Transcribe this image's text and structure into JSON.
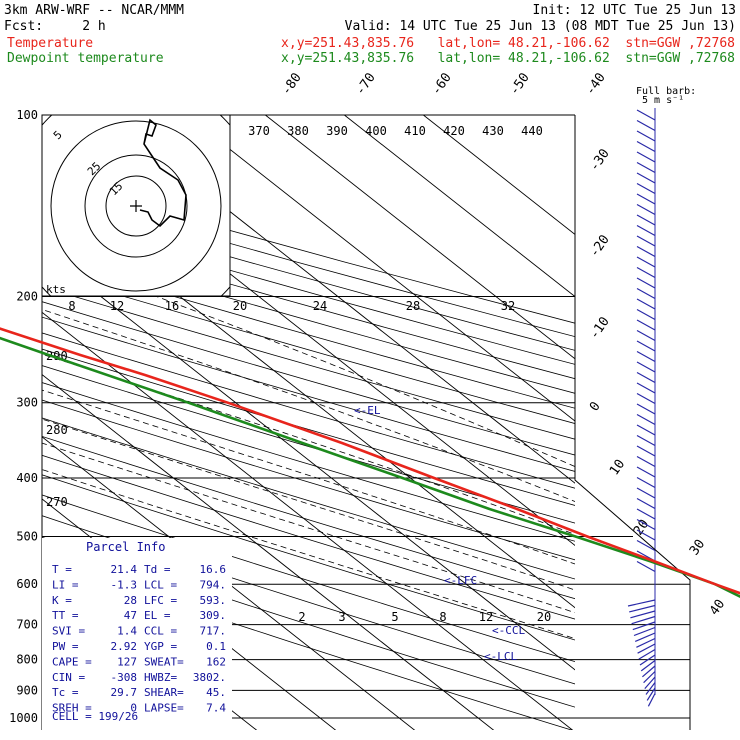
{
  "header": {
    "line1_left": "3km ARW-WRF -- NCAR/MMM",
    "line1_right": "Init: 12 UTC Tue 25 Jun 13",
    "line2_left": "Fcst:     2 h",
    "line2_right": "Valid: 14 UTC Tue 25 Jun 13 (08 MDT Tue 25 Jun 13)",
    "temp_label": "Temperature",
    "temp_info": "x,y=251.43,835.76   lat,lon= 48.21,-106.62  stn=GGW ,72768",
    "dew_label": "Dewpoint temperature",
    "dew_info": "x,y=251.43,835.76   lat,lon= 48.21,-106.62  stn=GGW ,72768"
  },
  "colors": {
    "temperature": "#e8251c",
    "dewpoint": "#1d8a1d",
    "wind": "#2a2aa8",
    "parcel_info": "#10109a"
  },
  "chart_data": {
    "type": "skew-t",
    "pressure_axis": {
      "ticks": [
        100,
        200,
        300,
        400,
        500,
        600,
        700,
        800,
        900,
        1000
      ],
      "scale": "log"
    },
    "isotherm_labels": [
      "-80",
      "-70",
      "-60",
      "-50",
      "-40",
      "-30",
      "-20",
      "-10",
      "0",
      "10",
      "20",
      "30",
      "40"
    ],
    "theta_labels": [
      "370",
      "380",
      "390",
      "400",
      "410",
      "420",
      "430",
      "440"
    ],
    "hodograph_speed_labels": [
      "8",
      "12",
      "16",
      "20",
      "24",
      "28",
      "32"
    ],
    "height_labels": [
      "290",
      "280",
      "270"
    ],
    "mixing_ratio_labels": [
      "2",
      "3",
      "5",
      "8",
      "12",
      "20"
    ],
    "hodo_ring_labels": [
      "5",
      "25",
      "15"
    ],
    "wind_unit": "kts",
    "barb_legend": [
      "Full barb:",
      "5 m s⁻¹"
    ],
    "markers": [
      "<-EL",
      "<-LFC",
      "<-CCL",
      "<-LCL"
    ],
    "temperature_profile": [
      {
        "p": 918,
        "t": 21.4
      },
      {
        "p": 900,
        "t": 19.5
      },
      {
        "p": 870,
        "t": 17.0
      },
      {
        "p": 800,
        "t": 15.5
      },
      {
        "p": 740,
        "t": 12.0
      },
      {
        "p": 700,
        "t": 9.0
      },
      {
        "p": 650,
        "t": 5.5
      },
      {
        "p": 600,
        "t": 1.5
      },
      {
        "p": 550,
        "t": -2.5
      },
      {
        "p": 500,
        "t": -7.0
      },
      {
        "p": 450,
        "t": -11.5
      },
      {
        "p": 400,
        "t": -17.0
      },
      {
        "p": 350,
        "t": -23.0
      },
      {
        "p": 300,
        "t": -31.0
      },
      {
        "p": 270,
        "t": -37.0
      },
      {
        "p": 250,
        "t": -42.0
      },
      {
        "p": 220,
        "t": -49.5
      },
      {
        "p": 200,
        "t": -55.5
      },
      {
        "p": 190,
        "t": -57.5
      },
      {
        "p": 180,
        "t": -56.5
      },
      {
        "p": 170,
        "t": -55.5
      },
      {
        "p": 160,
        "t": -54.5
      },
      {
        "p": 150,
        "t": -53.5
      },
      {
        "p": 140,
        "t": -54.0
      },
      {
        "p": 130,
        "t": -55.0
      },
      {
        "p": 120,
        "t": -57.0
      },
      {
        "p": 110,
        "t": -58.5
      },
      {
        "p": 100,
        "t": -60.5
      }
    ],
    "dewpoint_profile": [
      {
        "p": 918,
        "t": 16.6
      },
      {
        "p": 900,
        "t": 8.0
      },
      {
        "p": 870,
        "t": 3.0
      },
      {
        "p": 800,
        "t": 3.5
      },
      {
        "p": 750,
        "t": 3.0
      },
      {
        "p": 700,
        "t": 3.5
      },
      {
        "p": 650,
        "t": 3.5
      },
      {
        "p": 600,
        "t": 1.5
      },
      {
        "p": 550,
        "t": -3.0
      },
      {
        "p": 500,
        "t": -8.5
      },
      {
        "p": 450,
        "t": -15.0
      },
      {
        "p": 400,
        "t": -21.0
      },
      {
        "p": 350,
        "t": -28.0
      },
      {
        "p": 300,
        "t": -36.0
      },
      {
        "p": 250,
        "t": -46.0
      },
      {
        "p": 200,
        "t": -58.0
      },
      {
        "p": 180,
        "t": -64.0
      },
      {
        "p": 165,
        "t": -67.0
      },
      {
        "p": 150,
        "t": -70.0
      },
      {
        "p": 140,
        "t": -74.0
      },
      {
        "p": 130,
        "t": -81.0
      },
      {
        "p": 120,
        "t": -80.0
      },
      {
        "p": 110,
        "t": -77.0
      },
      {
        "p": 100,
        "t": -73.0
      }
    ]
  },
  "parcel_info": {
    "title": "Parcel Info",
    "rows": [
      [
        "T  =",
        "21.4",
        "Td =",
        "16.6"
      ],
      [
        "LI =",
        "-1.3",
        "LCL =",
        "794."
      ],
      [
        "K  =",
        "28",
        "LFC =",
        "593."
      ],
      [
        "TT =",
        "47",
        "EL  =",
        "309."
      ],
      [
        "SVI =",
        "1.4",
        "CCL =",
        "717."
      ],
      [
        "PW =",
        "2.92",
        "YGP =",
        "0.1"
      ],
      [
        "CAPE =",
        "127",
        "SWEAT=",
        "162"
      ],
      [
        "CIN =",
        "-308",
        "HWBZ=",
        "3802."
      ],
      [
        "Tc =",
        "29.7",
        "SHEAR=",
        "45."
      ],
      [
        "SREH =",
        "0",
        "LAPSE=",
        "7.4"
      ]
    ],
    "cell": "CELL = 199/26"
  }
}
